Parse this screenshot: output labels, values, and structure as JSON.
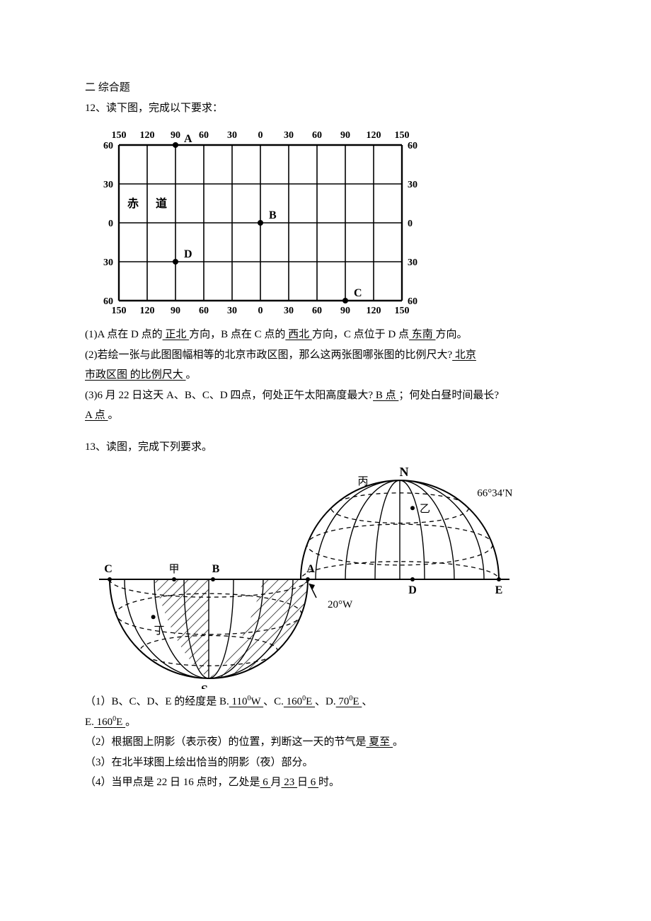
{
  "section": {
    "heading": "二 综合题"
  },
  "q12": {
    "prompt": "12、读下图，完成以下要求：",
    "grid": {
      "type": "grid-map",
      "top_labels": [
        "150",
        "120",
        "90",
        "60",
        "30",
        "0",
        "30",
        "60",
        "90",
        "120",
        "150"
      ],
      "bottom_labels": [
        "150",
        "120",
        "90",
        "60",
        "30",
        "0",
        "30",
        "60",
        "90",
        "120",
        "150"
      ],
      "left_labels_top_to_bottom": [
        "60",
        "30",
        "0",
        "30",
        "60"
      ],
      "right_labels_top_to_bottom": [
        "60",
        "30",
        "0",
        "30",
        "60"
      ],
      "equator_label_left": "赤",
      "equator_label_right": "道",
      "point_labels": {
        "A": "A",
        "B": "B",
        "C": "C",
        "D": "D"
      },
      "points": [
        {
          "id": "A",
          "lon": -90,
          "lat": 60
        },
        {
          "id": "B",
          "lon": 0,
          "lat": 0
        },
        {
          "id": "C",
          "lon": 90,
          "lat": -60
        },
        {
          "id": "D",
          "lon": -90,
          "lat": -30
        }
      ],
      "stroke": "#000",
      "stroke_width": 1.6,
      "heavy_stroke": 2.4,
      "font_size": 14
    },
    "p1": {
      "t1": "(1)A 点在 D 点的",
      "a1": "   正北   ",
      "t2": "方向，B 点在 C 点的",
      "a2": "   西北   ",
      "t3": "方向，C 点位于 D 点",
      "a3": " 东南 ",
      "t4": "方向。"
    },
    "p2": {
      "t1": "(2)若绘一张与此图图幅相等的北京市政区图，那么这两张图哪张图的比例尺大?",
      "a1": "    北京",
      "a2": " 市政区图 的比例尺大     ",
      "t2": "。"
    },
    "p3": {
      "t1": "(3)6 月 22 日这天 A、B、C、D 四点，何处正午太阳高度最大?",
      "a1": " B 点    ",
      "t2": "；何处白昼时间最长?",
      "a2": "  A 点        ",
      "t3": "。"
    }
  },
  "q13": {
    "prompt": "13、读图，完成下列要求。",
    "diagram": {
      "type": "two-hemispheres",
      "labels": {
        "N": "N",
        "S": "S",
        "A": "A",
        "B": "B",
        "C": "C",
        "D": "D",
        "E": "E",
        "jia": "甲",
        "yi": "乙",
        "bing": "丙",
        "ding": "丁"
      },
      "arctic_label": "66°34′N",
      "A_lon_label": "20°W",
      "stroke": "#000"
    },
    "p1": {
      "t1": "（1）B、C、D、E 的经度是 B.",
      "aB": "   110",
      "aB_sup": "0",
      "aB2": "W       ",
      "t2": "、C.",
      "aC": "   160",
      "aC_sup": "0",
      "aC2": "E      ",
      "t3": "、D.",
      "aD": "      70",
      "aD_sup": "0",
      "aD2": "E      ",
      "t4": "、",
      "t5": "  E.",
      "aE": "      160",
      "aE_sup": "0",
      "aE2": "E     ",
      "t6": "。"
    },
    "p2": {
      "t1": "（2）根据图上阴影（表示夜）的位置，判断这一天的节气是",
      "a1": "  夏至       ",
      "t2": "。"
    },
    "p3": {
      "t1": "（3）在北半球图上绘出恰当的阴影（夜）部分。"
    },
    "p4": {
      "t1": "（4）当甲点是 22 日 16 点时，乙处是",
      "a1": " 6    ",
      "t2": "月",
      "a2": "   23   ",
      "t3": "日",
      "a3": "   6    ",
      "t4": "时。"
    }
  }
}
